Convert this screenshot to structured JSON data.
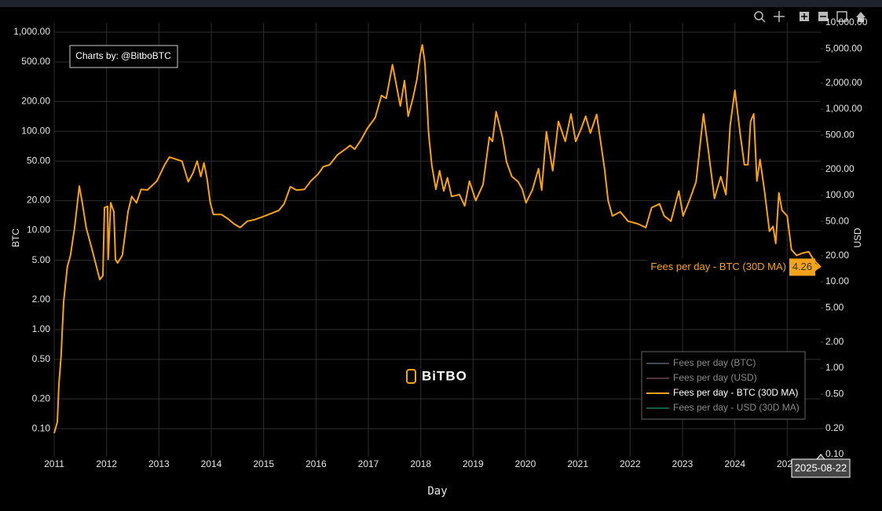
{
  "chart_data": {
    "type": "line",
    "x": [
      2011.0,
      2011.06,
      2011.09,
      2011.13,
      2011.18,
      2011.25,
      2011.31,
      2011.39,
      2011.48,
      2011.54,
      2011.61,
      2011.73,
      2011.87,
      2011.93,
      2011.96,
      2012.02,
      2012.03,
      2012.08,
      2012.14,
      2012.17,
      2012.21,
      2012.3,
      2012.41,
      2012.48,
      2012.57,
      2012.66,
      2012.78,
      2012.96,
      2013.11,
      2013.2,
      2013.34,
      2013.44,
      2013.56,
      2013.65,
      2013.73,
      2013.8,
      2013.86,
      2013.92,
      2013.98,
      2014.04,
      2014.19,
      2014.31,
      2014.43,
      2014.55,
      2014.69,
      2014.84,
      2014.99,
      2015.14,
      2015.29,
      2015.39,
      2015.51,
      2015.63,
      2015.78,
      2015.9,
      2016.04,
      2016.14,
      2016.26,
      2016.41,
      2016.56,
      2016.65,
      2016.74,
      2016.86,
      2016.98,
      2017.13,
      2017.25,
      2017.34,
      2017.46,
      2017.54,
      2017.61,
      2017.69,
      2017.76,
      2017.85,
      2017.93,
      2017.99,
      2018.03,
      2018.08,
      2018.15,
      2018.21,
      2018.29,
      2018.36,
      2018.44,
      2018.51,
      2018.59,
      2018.74,
      2018.84,
      2018.93,
      2019.05,
      2019.19,
      2019.31,
      2019.37,
      2019.44,
      2019.56,
      2019.64,
      2019.74,
      2019.86,
      2019.94,
      2020.01,
      2020.13,
      2020.25,
      2020.31,
      2020.4,
      2020.52,
      2020.63,
      2020.76,
      2020.87,
      2020.96,
      2021.06,
      2021.15,
      2021.24,
      2021.36,
      2021.51,
      2021.58,
      2021.66,
      2021.81,
      2021.96,
      2022.14,
      2022.3,
      2022.41,
      2022.56,
      2022.65,
      2022.78,
      2022.93,
      2023.01,
      2023.13,
      2023.26,
      2023.4,
      2023.49,
      2023.61,
      2023.73,
      2023.83,
      2023.91,
      2024.0,
      2024.1,
      2024.18,
      2024.25,
      2024.3,
      2024.36,
      2024.42,
      2024.48,
      2024.57,
      2024.66,
      2024.73,
      2024.78,
      2024.84,
      2024.9,
      2025.0,
      2025.08,
      2025.18,
      2025.29,
      2025.41,
      2025.5,
      2025.64
    ],
    "series": [
      {
        "name": "Fees per day - BTC (30D MA)",
        "color": "#f7a21b",
        "values": [
          0.09,
          0.117,
          0.28,
          0.53,
          1.9,
          4.3,
          5.6,
          10.7,
          28,
          18.5,
          10.7,
          6.2,
          3.2,
          3.5,
          17,
          17.5,
          5.1,
          19,
          15.4,
          5.1,
          4.7,
          5.6,
          15.4,
          22,
          19,
          26,
          25.6,
          31.5,
          46,
          55,
          52,
          50,
          31,
          38,
          50,
          35,
          48,
          33,
          19,
          14.5,
          14.5,
          13.2,
          11.7,
          10.7,
          12.4,
          12.9,
          13.8,
          14.8,
          15.9,
          18.5,
          27.6,
          25.5,
          26,
          31.5,
          37,
          44,
          46,
          58,
          66,
          72,
          66,
          82,
          107,
          137,
          230,
          215,
          470,
          283,
          180,
          325,
          142,
          215,
          340,
          590,
          745,
          490,
          96,
          46,
          26,
          40,
          25,
          34,
          22,
          23,
          17.7,
          31.5,
          20,
          29,
          87,
          79,
          158,
          87,
          49,
          35,
          31,
          26,
          19,
          25.5,
          42,
          25.5,
          99,
          40,
          126,
          79,
          150,
          79,
          105,
          142,
          96,
          148,
          42,
          20,
          14,
          15.4,
          12.4,
          11.7,
          10.7,
          17,
          18.5,
          14,
          12.4,
          25,
          14,
          20,
          31,
          150,
          66,
          21,
          35,
          23,
          115,
          260,
          96,
          46,
          46,
          126,
          150,
          31.5,
          52,
          24,
          9.8,
          11,
          7.4,
          24,
          15.9,
          14,
          6.4,
          5.6,
          5.9,
          6.1,
          5.1,
          4.26
        ]
      }
    ],
    "xlim": [
      2011,
      2025.64
    ],
    "xticks": [
      2011,
      2012,
      2013,
      2014,
      2015,
      2016,
      2017,
      2018,
      2019,
      2020,
      2021,
      2022,
      2023,
      2024,
      2025
    ],
    "ylim": [
      0.052,
      1245
    ],
    "yticks": [
      {
        "value": 1000,
        "label": "1,000.00"
      },
      {
        "value": 500,
        "label": "500.00"
      },
      {
        "value": 200,
        "label": "200.00"
      },
      {
        "value": 100,
        "label": "100.00"
      },
      {
        "value": 50,
        "label": "50.00"
      },
      {
        "value": 20,
        "label": "20.00"
      },
      {
        "value": 10,
        "label": "10.00"
      },
      {
        "value": 5,
        "label": "5.00"
      },
      {
        "value": 2,
        "label": "2.00"
      },
      {
        "value": 1,
        "label": "1.00"
      },
      {
        "value": 0.5,
        "label": "0.50"
      },
      {
        "value": 0.2,
        "label": "0.20"
      },
      {
        "value": 0.1,
        "label": "0.10"
      }
    ],
    "y2lim": [
      0.094,
      10000
    ],
    "y2ticks": [
      {
        "value": 10000,
        "label": "10,000.00"
      },
      {
        "value": 5000,
        "label": "5,000.00"
      },
      {
        "value": 2000,
        "label": "2,000.00"
      },
      {
        "value": 1000,
        "label": "1,000.00"
      },
      {
        "value": 500,
        "label": "500.00"
      },
      {
        "value": 200,
        "label": "200.00"
      },
      {
        "value": 100,
        "label": "100.00"
      },
      {
        "value": 50,
        "label": "50.00"
      },
      {
        "value": 20,
        "label": "20.00"
      },
      {
        "value": 10,
        "label": "10.00"
      },
      {
        "value": 5,
        "label": "5.00"
      },
      {
        "value": 2,
        "label": "2.00"
      },
      {
        "value": 1,
        "label": "1.00"
      },
      {
        "value": 0.5,
        "label": "0.50"
      },
      {
        "value": 0.2,
        "label": "0.20"
      },
      {
        "value": 0.1,
        "label": "0.10"
      }
    ],
    "log_y": true,
    "grid": true,
    "xlabel": "Day",
    "ylabel": "BTC",
    "y2label": "USD",
    "annotation": "Charts by: @BitboBTC",
    "watermark": "BiTBO",
    "hover_x": "2025-08-22",
    "legend": {
      "position": "bottom right",
      "items": [
        {
          "name": "Fees per day (BTC)",
          "color": "#6b7888",
          "active": false
        },
        {
          "name": "Fees per day (USD)",
          "color": "#8a5c5c",
          "active": false
        },
        {
          "name": "Fees per day - BTC (30D MA)",
          "color": "#f7a21b",
          "active": true
        },
        {
          "name": "Fees per day - USD (30D MA)",
          "color": "#1e9a6c",
          "active": false
        }
      ]
    }
  }
}
